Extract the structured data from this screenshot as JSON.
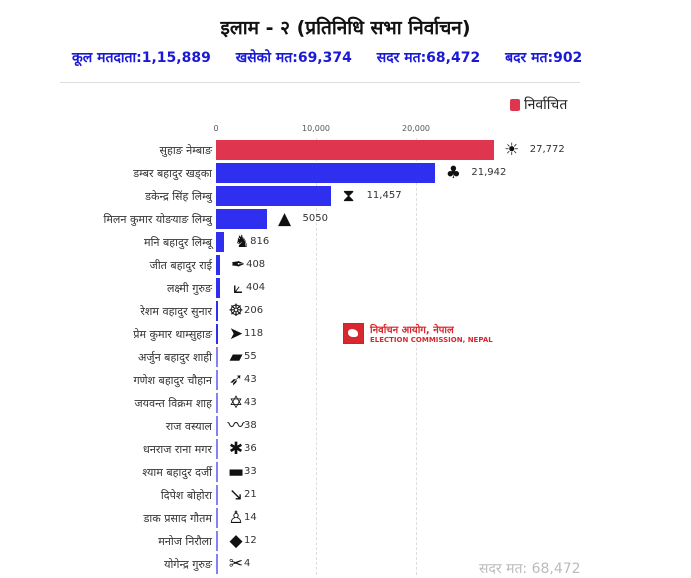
{
  "header": {
    "title": "इलाम - २ (प्रतिनिधि सभा निर्वाचन)",
    "total_voters": "कूल मतदाता:1,15,889",
    "votes_cast": "खसेको मत:69,374",
    "valid_votes": "सदर मत:68,472",
    "invalid_votes": "बदर मत:902"
  },
  "legend": {
    "label": "निर्वाचित",
    "color": "#e0354f"
  },
  "logo": {
    "line1": "निर्वाचन आयोग, नेपाल",
    "line2": "ELECTION COMMISSION, NEPAL"
  },
  "footer": "सदर मत: 68,472",
  "chart_data": {
    "type": "bar",
    "orientation": "horizontal",
    "xlim": [
      0,
      30000
    ],
    "x_ticks": [
      "0",
      "10,000",
      "20,000"
    ],
    "x_tick_values": [
      0,
      10000,
      20000
    ],
    "grid": true,
    "legend_position": "top-right",
    "colors": {
      "elected": "#e0354f",
      "other": "#2f2fef"
    },
    "categories": [
      "सुहाङ नेम्बाङ",
      "डम्बर बहादुर खड्का",
      "डकेन्द्र सिंह लिम्बु",
      "मिलन कुमार योङयाङ लिम्बु",
      "मनि बहादुर लिम्बू",
      "जीत बहादुर राई",
      "लक्ष्मी गुरुङ",
      "रेशम वहादुर सुनार",
      "प्रेम कुमार थाम्सुहाङ",
      "अर्जुन बहादुर शाही",
      "गणेश बहादुर चौहान",
      "जयवन्त विक्रम शाह",
      "राज वस्याल",
      "धनराज राना मगर",
      "श्याम बहादुर दर्जी",
      "दिपेश बोहोरा",
      "डाक प्रसाद गौतम",
      "मनोज निरौला",
      "योगेन्द्र गुरुङ"
    ],
    "values": [
      27772,
      21942,
      11457,
      5050,
      816,
      408,
      404,
      206,
      118,
      55,
      43,
      43,
      38,
      36,
      33,
      21,
      14,
      12,
      4
    ],
    "value_labels": [
      "27,772",
      "21,942",
      "11,457",
      "5050",
      "816",
      "408",
      "404",
      "206",
      "118",
      "55",
      "43",
      "43",
      "38",
      "36",
      "33",
      "21",
      "14",
      "12",
      "4"
    ],
    "elected": [
      true,
      false,
      false,
      false,
      false,
      false,
      false,
      false,
      false,
      false,
      false,
      false,
      false,
      false,
      false,
      false,
      false,
      false,
      false
    ],
    "icons": [
      "sun",
      "tree",
      "madal-drum",
      "bell",
      "rooster",
      "pen",
      "plough",
      "wheel",
      "horn",
      "bulldozer",
      "arrow",
      "star-of-david",
      "mustache",
      "bee",
      "dhol-drum",
      "syringe",
      "statue",
      "fish",
      "scissors"
    ]
  }
}
